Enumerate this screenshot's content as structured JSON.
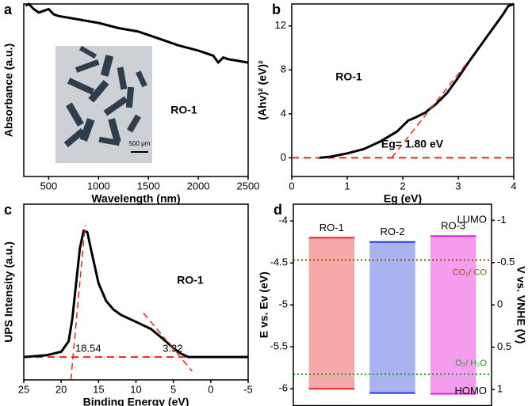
{
  "chart_data": [
    {
      "type": "line",
      "panel_label": "a",
      "x_label": "Wavelength (nm)",
      "y_label": "Absorbance (a.u.)",
      "xlim": [
        250,
        2500
      ],
      "xticks": [
        500,
        1000,
        1500,
        2000,
        2500
      ],
      "ylim": [
        0,
        1
      ],
      "sample_label": "RO-1",
      "scale_bar_label": "500 μm",
      "series": [
        {
          "color": "#000000",
          "x": [
            270,
            300,
            350,
            400,
            450,
            500,
            550,
            600,
            700,
            800,
            1000,
            1200,
            1400,
            1600,
            1800,
            2000,
            2100,
            2150,
            2200,
            2250,
            2300,
            2400,
            2500
          ],
          "values": [
            0.99,
            1.0,
            0.97,
            0.95,
            0.96,
            0.97,
            0.94,
            0.93,
            0.92,
            0.91,
            0.89,
            0.86,
            0.84,
            0.8,
            0.76,
            0.73,
            0.71,
            0.7,
            0.66,
            0.69,
            0.68,
            0.67,
            0.66
          ]
        }
      ]
    },
    {
      "type": "line",
      "panel_label": "b",
      "x_label": "Eg (eV)",
      "y_label": "(Ahv)² (eV)²",
      "xlim": [
        0,
        4
      ],
      "xticks": [
        0,
        1,
        2,
        3,
        4
      ],
      "ylim": [
        -1.7,
        14
      ],
      "yticks": [
        0,
        4,
        8,
        12
      ],
      "sample_label": "RO-1",
      "eg_label": "Eg= 1.80 eV",
      "series": [
        {
          "color": "#000000",
          "x": [
            0.5,
            0.7,
            1.0,
            1.3,
            1.6,
            1.9,
            2.0,
            2.1,
            2.2,
            2.4,
            2.6,
            2.8,
            3.0,
            3.2,
            3.4,
            3.6,
            3.8,
            3.9,
            4.0
          ],
          "values": [
            0,
            0.1,
            0.4,
            0.8,
            1.5,
            2.4,
            2.9,
            3.4,
            3.6,
            4.1,
            4.9,
            5.9,
            7.3,
            8.8,
            10.2,
            11.6,
            13.0,
            13.8,
            14.0
          ]
        }
      ],
      "fit_lines": [
        {
          "color": "#e8281e",
          "x": [
            1.8,
            3.2
          ],
          "values": [
            0,
            8.9
          ]
        }
      ],
      "baselines": [
        {
          "color": "#e8281e",
          "value": 0
        }
      ]
    },
    {
      "type": "line",
      "panel_label": "c",
      "x_label": "Binding Energy (eV)",
      "y_label": "UPS Intensity (a.u.)",
      "xlim": [
        25,
        -5
      ],
      "xticks": [
        25,
        20,
        15,
        10,
        5,
        0,
        -5
      ],
      "ylim": [
        0,
        1
      ],
      "sample_label": "RO-1",
      "series": [
        {
          "color": "#000000",
          "x": [
            25,
            22,
            20,
            19,
            18.5,
            18,
            17.5,
            17,
            16.5,
            16,
            15,
            14,
            13,
            12,
            10,
            8,
            6,
            5,
            4,
            3,
            0,
            -5
          ],
          "values": [
            0.13,
            0.14,
            0.16,
            0.22,
            0.35,
            0.55,
            0.75,
            0.85,
            0.84,
            0.74,
            0.55,
            0.45,
            0.4,
            0.37,
            0.33,
            0.29,
            0.22,
            0.18,
            0.15,
            0.13,
            0.13,
            0.13
          ]
        }
      ],
      "fit_lines": [
        {
          "color": "#e8281e",
          "x": [
            18.7,
            16.8
          ],
          "values": [
            0.0,
            0.88
          ]
        },
        {
          "color": "#e8281e",
          "x": [
            9,
            2.5
          ],
          "values": [
            0.38,
            0.05
          ]
        }
      ],
      "baselines": [
        {
          "color": "#e8281e",
          "value": 0.13
        }
      ],
      "onsets": [
        18.54,
        3.32
      ]
    },
    {
      "type": "floating-bar",
      "panel_label": "d",
      "y_label": "E vs. Ev (eV)",
      "y2_label": "V vs. VNHE (V)",
      "ylim": [
        -6.2,
        -3.8
      ],
      "yticks": [
        -4,
        -4.5,
        -5,
        -5.5,
        -6
      ],
      "y2lim": [
        -1.19,
        1.19
      ],
      "y2_inverted": true,
      "y2ticks": [
        -1,
        -0.5,
        0,
        0.5,
        1
      ],
      "categories": [
        "RO-1",
        "RO-2",
        "RO-3"
      ],
      "colors": [
        "#e8282a",
        "#2838d8",
        "#e020e0"
      ],
      "fills": [
        "#f6a9a8",
        "#aab3f1",
        "#f59cf0"
      ],
      "series": [
        {
          "name": "LUMO",
          "values": [
            -4.2,
            -4.25,
            -4.18
          ]
        },
        {
          "name": "HOMO",
          "values": [
            -6.0,
            -6.05,
            -6.06
          ]
        }
      ],
      "reference_lines": [
        {
          "name": "CO₂/ CO",
          "value": -0.53,
          "axis": "y2",
          "color": "#8b5a00"
        },
        {
          "name": "O₂/ H₂O",
          "value": 0.82,
          "axis": "y2",
          "color": "#17a617"
        }
      ]
    }
  ]
}
